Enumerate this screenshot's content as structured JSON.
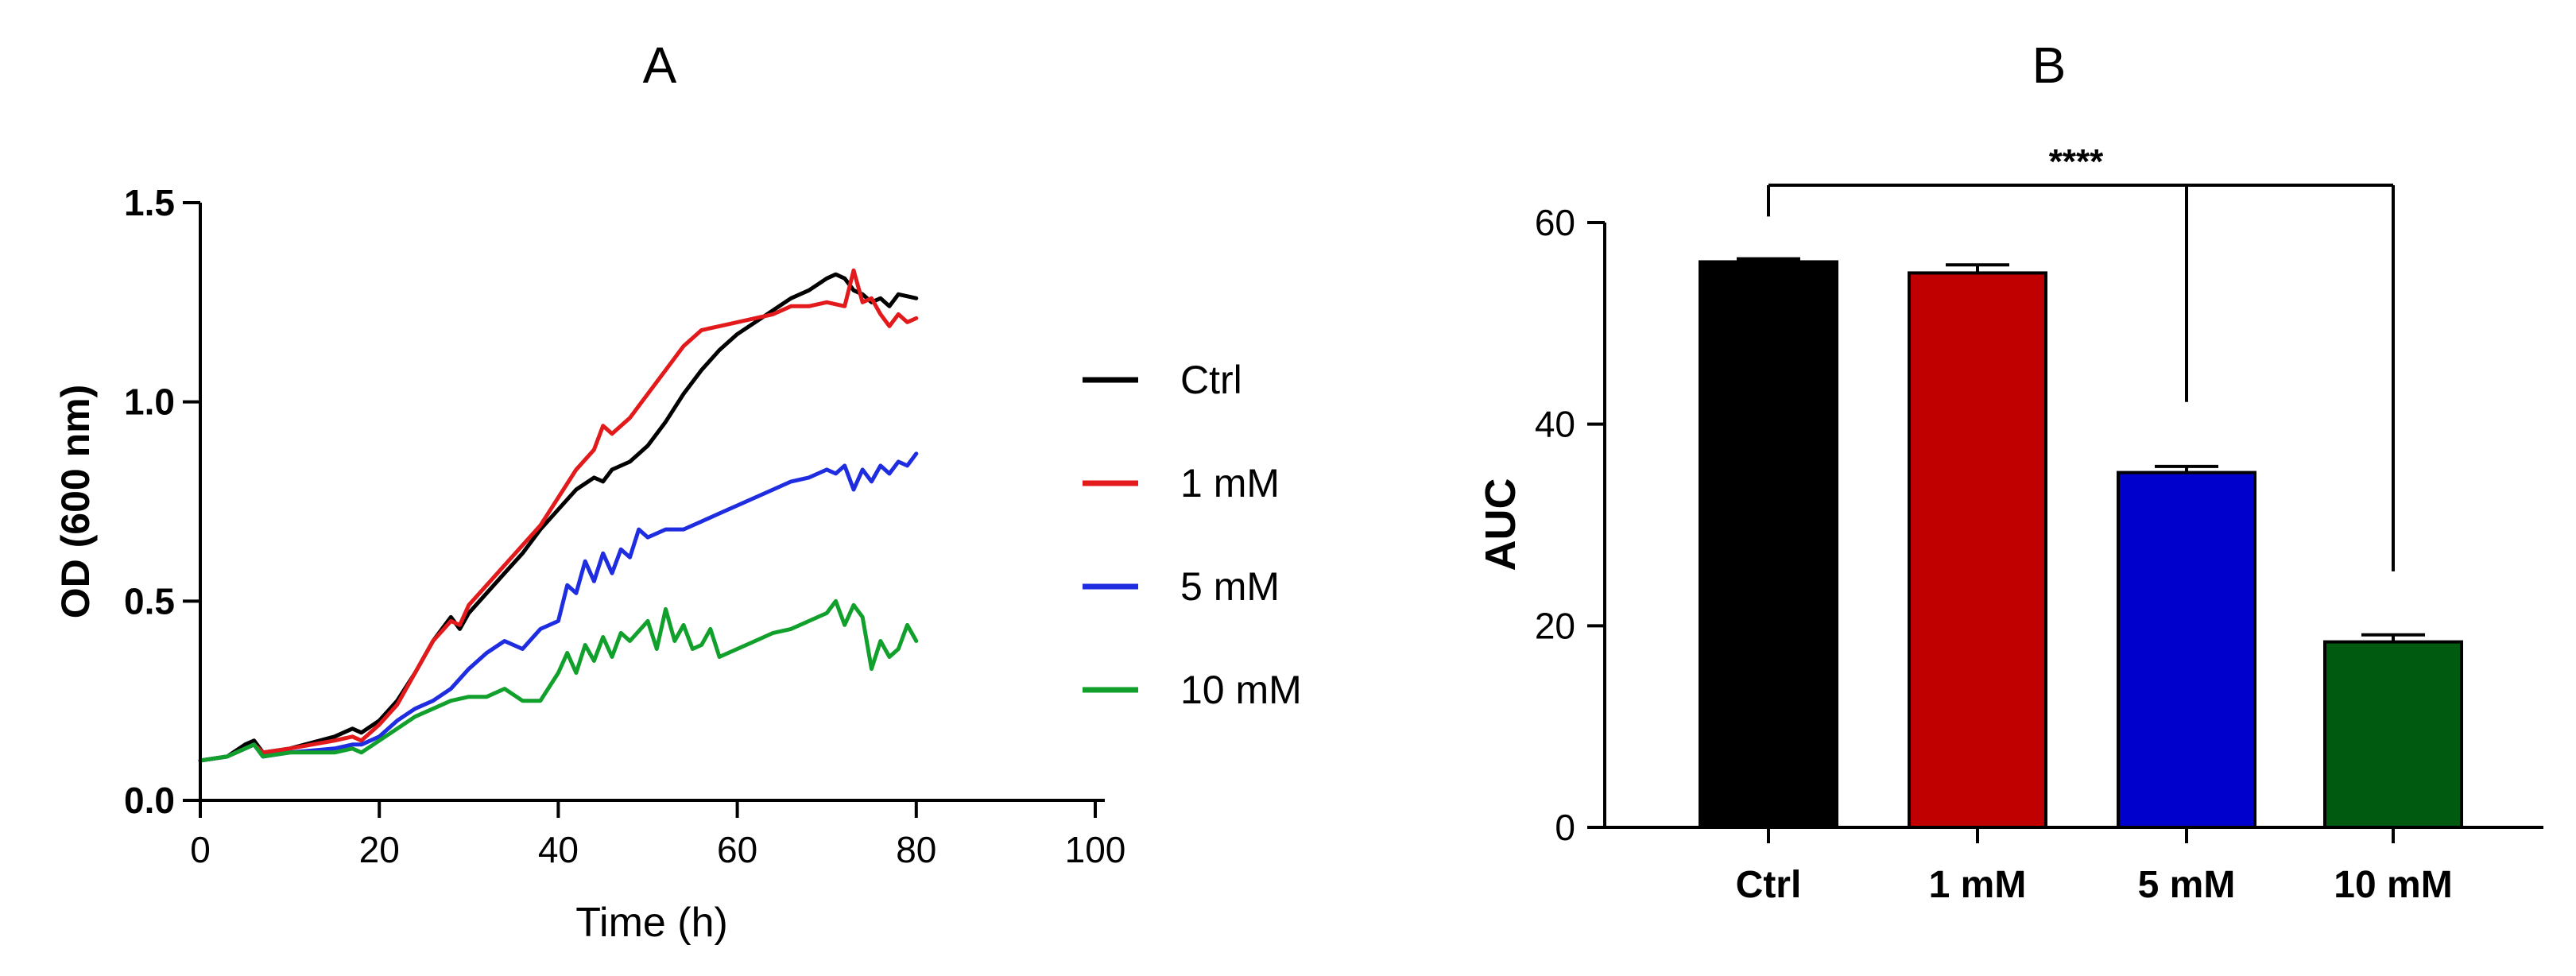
{
  "chart_data": [
    {
      "panel": "A",
      "type": "line",
      "title": "A",
      "xlabel": "Time (h)",
      "ylabel": "OD (600 nm)",
      "xlim": [
        0,
        100
      ],
      "ylim": [
        0,
        1.5
      ],
      "xticks": [
        0,
        20,
        40,
        60,
        80,
        100
      ],
      "yticks": [
        0.0,
        0.5,
        1.0,
        1.5
      ],
      "xtick_labels": [
        "0",
        "20",
        "40",
        "60",
        "80",
        "100"
      ],
      "ytick_labels": [
        "0.0",
        "0.5",
        "1.0",
        "1.5"
      ],
      "grid": false,
      "legend_position": "right",
      "series": [
        {
          "name": "Ctrl",
          "color": "#000000",
          "x": [
            0,
            3,
            5,
            6,
            7,
            10,
            15,
            17,
            18,
            20,
            22,
            24,
            26,
            28,
            29,
            30,
            32,
            34,
            36,
            38,
            40,
            42,
            44,
            45,
            46,
            48,
            50,
            52,
            54,
            56,
            58,
            60,
            62,
            64,
            66,
            68,
            70,
            71,
            72,
            73,
            74,
            75,
            76,
            77,
            78,
            80
          ],
          "y": [
            0.1,
            0.11,
            0.14,
            0.15,
            0.12,
            0.13,
            0.16,
            0.18,
            0.17,
            0.2,
            0.25,
            0.32,
            0.4,
            0.46,
            0.43,
            0.47,
            0.52,
            0.57,
            0.62,
            0.68,
            0.73,
            0.78,
            0.81,
            0.8,
            0.83,
            0.85,
            0.89,
            0.95,
            1.02,
            1.08,
            1.13,
            1.17,
            1.2,
            1.23,
            1.26,
            1.28,
            1.31,
            1.32,
            1.31,
            1.28,
            1.27,
            1.25,
            1.26,
            1.24,
            1.27,
            1.26
          ]
        },
        {
          "name": "1 mM",
          "color": "#e31a1c",
          "x": [
            0,
            3,
            5,
            6,
            7,
            10,
            15,
            17,
            18,
            20,
            22,
            24,
            26,
            28,
            29,
            30,
            32,
            34,
            36,
            38,
            40,
            42,
            44,
            45,
            46,
            48,
            50,
            52,
            54,
            56,
            58,
            60,
            62,
            64,
            66,
            68,
            70,
            72,
            73,
            74,
            75,
            76,
            77,
            78,
            79,
            80
          ],
          "y": [
            0.1,
            0.11,
            0.13,
            0.14,
            0.12,
            0.13,
            0.15,
            0.16,
            0.15,
            0.19,
            0.24,
            0.32,
            0.4,
            0.45,
            0.44,
            0.49,
            0.54,
            0.59,
            0.64,
            0.69,
            0.76,
            0.83,
            0.88,
            0.94,
            0.92,
            0.96,
            1.02,
            1.08,
            1.14,
            1.18,
            1.19,
            1.2,
            1.21,
            1.22,
            1.24,
            1.24,
            1.25,
            1.24,
            1.33,
            1.25,
            1.26,
            1.22,
            1.19,
            1.22,
            1.2,
            1.21
          ]
        },
        {
          "name": "5 mM",
          "color": "#1f2de0",
          "x": [
            0,
            3,
            5,
            6,
            7,
            10,
            15,
            17,
            18,
            20,
            22,
            24,
            26,
            28,
            30,
            32,
            34,
            36,
            38,
            40,
            41,
            42,
            43,
            44,
            45,
            46,
            47,
            48,
            49,
            50,
            52,
            54,
            56,
            58,
            60,
            62,
            64,
            66,
            68,
            70,
            71,
            72,
            73,
            74,
            75,
            76,
            77,
            78,
            79,
            80
          ],
          "y": [
            0.1,
            0.11,
            0.13,
            0.14,
            0.11,
            0.12,
            0.13,
            0.14,
            0.14,
            0.16,
            0.2,
            0.23,
            0.25,
            0.28,
            0.33,
            0.37,
            0.4,
            0.38,
            0.43,
            0.45,
            0.54,
            0.52,
            0.6,
            0.55,
            0.62,
            0.57,
            0.63,
            0.61,
            0.68,
            0.66,
            0.68,
            0.68,
            0.7,
            0.72,
            0.74,
            0.76,
            0.78,
            0.8,
            0.81,
            0.83,
            0.82,
            0.84,
            0.78,
            0.83,
            0.8,
            0.84,
            0.82,
            0.85,
            0.84,
            0.87
          ]
        },
        {
          "name": "10 mM",
          "color": "#12a02c",
          "x": [
            0,
            3,
            5,
            6,
            7,
            10,
            15,
            17,
            18,
            20,
            22,
            24,
            26,
            28,
            30,
            32,
            34,
            36,
            38,
            40,
            41,
            42,
            43,
            44,
            45,
            46,
            47,
            48,
            50,
            51,
            52,
            53,
            54,
            55,
            56,
            57,
            58,
            60,
            62,
            64,
            66,
            68,
            70,
            71,
            72,
            73,
            74,
            75,
            76,
            77,
            78,
            79,
            80
          ],
          "y": [
            0.1,
            0.11,
            0.13,
            0.14,
            0.11,
            0.12,
            0.12,
            0.13,
            0.12,
            0.15,
            0.18,
            0.21,
            0.23,
            0.25,
            0.26,
            0.26,
            0.28,
            0.25,
            0.25,
            0.32,
            0.37,
            0.32,
            0.39,
            0.35,
            0.41,
            0.36,
            0.42,
            0.4,
            0.45,
            0.38,
            0.48,
            0.4,
            0.44,
            0.38,
            0.39,
            0.43,
            0.36,
            0.38,
            0.4,
            0.42,
            0.43,
            0.45,
            0.47,
            0.5,
            0.44,
            0.49,
            0.46,
            0.33,
            0.4,
            0.36,
            0.38,
            0.44,
            0.4
          ]
        }
      ]
    },
    {
      "panel": "B",
      "type": "bar",
      "title": "B",
      "xlabel": "",
      "ylabel": "AUC",
      "ylim": [
        0,
        60
      ],
      "yticks": [
        0,
        20,
        40,
        60
      ],
      "ytick_labels": [
        "0",
        "20",
        "40",
        "60"
      ],
      "grid": false,
      "categories": [
        "Ctrl",
        "1 mM",
        "5 mM",
        "10 mM"
      ],
      "values": [
        56.1,
        55.0,
        35.2,
        18.4
      ],
      "errors": [
        0.3,
        0.8,
        0.6,
        0.7
      ],
      "colors": [
        "#000000",
        "#c00000",
        "#0000cc",
        "#005a10"
      ],
      "significance": {
        "label": "****",
        "reference": "Ctrl",
        "compared": [
          "5 mM",
          "10 mM"
        ]
      }
    }
  ]
}
